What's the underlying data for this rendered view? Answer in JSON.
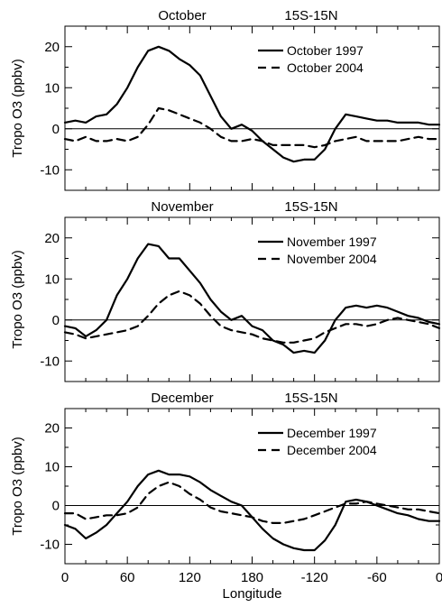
{
  "chart_data": [
    {
      "type": "line",
      "title_left": "October",
      "title_right": "15S-15N",
      "ylabel": "Tropo O3 (ppbv)",
      "xlabel": "",
      "xlim": [
        0,
        360
      ],
      "ylim": [
        -15,
        25
      ],
      "yticks": [
        -10,
        0,
        10,
        20
      ],
      "xtick_labels": [
        "0",
        "60",
        "120",
        "180",
        "-120",
        "-60",
        "0"
      ],
      "zero_line": true,
      "legend_position": "top-right",
      "series": [
        {
          "name": "October 1997",
          "style": "solid",
          "x": [
            0,
            10,
            20,
            30,
            40,
            50,
            60,
            70,
            80,
            90,
            100,
            110,
            120,
            130,
            140,
            150,
            160,
            170,
            180,
            190,
            200,
            210,
            220,
            230,
            240,
            250,
            260,
            270,
            280,
            290,
            300,
            310,
            320,
            330,
            340,
            350,
            360
          ],
          "values": [
            1.5,
            2,
            1.5,
            3,
            3.5,
            6,
            10,
            15,
            19,
            20,
            19,
            17,
            15.5,
            13,
            8,
            3,
            0,
            1,
            -0.5,
            -3,
            -5,
            -7,
            -8,
            -7.5,
            -7.5,
            -5,
            0,
            3.5,
            3,
            2.5,
            2,
            2,
            1.5,
            1.5,
            1.5,
            1,
            1
          ]
        },
        {
          "name": "October 2004",
          "style": "dashed",
          "x": [
            0,
            10,
            20,
            30,
            40,
            50,
            60,
            70,
            80,
            90,
            100,
            110,
            120,
            130,
            140,
            150,
            160,
            170,
            180,
            190,
            200,
            210,
            220,
            230,
            240,
            250,
            260,
            270,
            280,
            290,
            300,
            310,
            320,
            330,
            340,
            350,
            360
          ],
          "values": [
            -2.5,
            -3,
            -2,
            -3,
            -3,
            -2.5,
            -3,
            -2,
            1,
            5,
            4.5,
            3.5,
            2.5,
            1.5,
            0,
            -2,
            -3,
            -3,
            -2.5,
            -3,
            -4,
            -4,
            -4,
            -4,
            -4.5,
            -4,
            -3,
            -2.5,
            -2,
            -3,
            -3,
            -3,
            -3,
            -2.5,
            -2,
            -2.5,
            -2.5
          ]
        }
      ]
    },
    {
      "type": "line",
      "title_left": "November",
      "title_right": "15S-15N",
      "ylabel": "Tropo O3 (ppbv)",
      "xlabel": "",
      "xlim": [
        0,
        360
      ],
      "ylim": [
        -15,
        25
      ],
      "yticks": [
        -10,
        0,
        10,
        20
      ],
      "xtick_labels": [
        "0",
        "60",
        "120",
        "180",
        "-120",
        "-60",
        "0"
      ],
      "zero_line": true,
      "legend_position": "top-right",
      "series": [
        {
          "name": "November 1997",
          "style": "solid",
          "x": [
            0,
            10,
            20,
            30,
            40,
            50,
            60,
            70,
            80,
            90,
            100,
            110,
            120,
            130,
            140,
            150,
            160,
            170,
            180,
            190,
            200,
            210,
            220,
            230,
            240,
            250,
            260,
            270,
            280,
            290,
            300,
            310,
            320,
            330,
            340,
            350,
            360
          ],
          "values": [
            -1.5,
            -2,
            -4,
            -2.5,
            0,
            6,
            10,
            15,
            18.5,
            18,
            15,
            15,
            12,
            9,
            5,
            2,
            0,
            1,
            -1.5,
            -2.5,
            -5,
            -6,
            -8,
            -7.5,
            -8,
            -5,
            0,
            3,
            3.5,
            3,
            3.5,
            3,
            2,
            1,
            0.5,
            -0.5,
            -1
          ]
        },
        {
          "name": "November 2004",
          "style": "dashed",
          "x": [
            0,
            10,
            20,
            30,
            40,
            50,
            60,
            70,
            80,
            90,
            100,
            110,
            120,
            130,
            140,
            150,
            160,
            170,
            180,
            190,
            200,
            210,
            220,
            230,
            240,
            250,
            260,
            270,
            280,
            290,
            300,
            310,
            320,
            330,
            340,
            350,
            360
          ],
          "values": [
            -3,
            -3.5,
            -4.5,
            -4,
            -3.5,
            -3,
            -2.5,
            -1.5,
            1,
            4,
            6,
            7,
            6,
            4,
            1,
            -1.5,
            -2.5,
            -3,
            -3.5,
            -4.5,
            -5,
            -5.5,
            -5.5,
            -5,
            -4.5,
            -3,
            -2,
            -1,
            -1,
            -1.5,
            -1,
            0,
            0.5,
            0,
            -0.5,
            -1,
            -2
          ]
        }
      ]
    },
    {
      "type": "line",
      "title_left": "December",
      "title_right": "15S-15N",
      "ylabel": "Tropo O3 (ppbv)",
      "xlabel": "Longitude",
      "xlim": [
        0,
        360
      ],
      "ylim": [
        -15,
        25
      ],
      "yticks": [
        -10,
        0,
        10,
        20
      ],
      "xtick_labels": [
        "0",
        "60",
        "120",
        "180",
        "-120",
        "-60",
        "0"
      ],
      "zero_line": true,
      "legend_position": "top-right",
      "series": [
        {
          "name": "December 1997",
          "style": "solid",
          "x": [
            0,
            10,
            20,
            30,
            40,
            50,
            60,
            70,
            80,
            90,
            100,
            110,
            120,
            130,
            140,
            150,
            160,
            170,
            180,
            190,
            200,
            210,
            220,
            230,
            240,
            250,
            260,
            270,
            280,
            290,
            300,
            310,
            320,
            330,
            340,
            350,
            360
          ],
          "values": [
            -5,
            -6,
            -8.5,
            -7,
            -5,
            -2,
            1,
            5,
            8,
            9,
            8,
            8,
            7.5,
            6,
            4,
            2.5,
            1,
            0,
            -3,
            -6,
            -8.5,
            -10,
            -11,
            -11.5,
            -11.5,
            -9,
            -5,
            1,
            1.5,
            1,
            0,
            -1,
            -2,
            -2.5,
            -3.5,
            -4,
            -4
          ]
        },
        {
          "name": "December 2004",
          "style": "dashed",
          "x": [
            0,
            10,
            20,
            30,
            40,
            50,
            60,
            70,
            80,
            90,
            100,
            110,
            120,
            130,
            140,
            150,
            160,
            170,
            180,
            190,
            200,
            210,
            220,
            230,
            240,
            250,
            260,
            270,
            280,
            290,
            300,
            310,
            320,
            330,
            340,
            350,
            360
          ],
          "values": [
            -2,
            -2,
            -3.5,
            -3,
            -2.5,
            -2.5,
            -2,
            -0.5,
            3,
            5,
            6,
            5,
            3,
            1.5,
            -0.5,
            -1.5,
            -2,
            -2.5,
            -3,
            -4,
            -4.5,
            -4.5,
            -4,
            -3.5,
            -2.5,
            -1.5,
            -0.5,
            0.5,
            0.5,
            1,
            0.5,
            0,
            -0.5,
            -1,
            -1,
            -1.5,
            -2
          ]
        }
      ]
    }
  ]
}
